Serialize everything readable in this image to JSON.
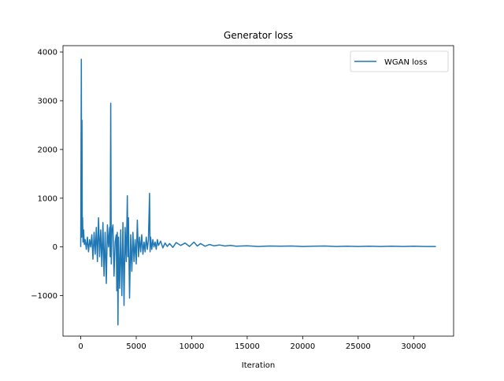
{
  "chart_data": {
    "type": "line",
    "title": "Generator loss",
    "xlabel": "Iteration",
    "ylabel": "",
    "xlim": [
      -1600,
      33600
    ],
    "ylim": [
      -1830,
      4130
    ],
    "x_ticks": [
      0,
      5000,
      10000,
      15000,
      20000,
      25000,
      30000
    ],
    "x_tick_labels": [
      "0",
      "5000",
      "10000",
      "15000",
      "20000",
      "25000",
      "30000"
    ],
    "y_ticks": [
      -1000,
      0,
      1000,
      2000,
      3000,
      4000
    ],
    "y_tick_labels": [
      "−1000",
      "0",
      "1000",
      "2000",
      "3000",
      "4000"
    ],
    "grid": false,
    "legend_position": "top-right",
    "colors": {
      "series": "#1f77b4",
      "axes": "#000000",
      "background": "#ffffff"
    },
    "series": [
      {
        "name": "WGAN loss",
        "x": [
          0,
          50,
          80,
          110,
          140,
          170,
          200,
          260,
          320,
          400,
          500,
          600,
          700,
          800,
          900,
          1000,
          1100,
          1200,
          1300,
          1400,
          1500,
          1600,
          1700,
          1800,
          1900,
          2000,
          2100,
          2200,
          2300,
          2400,
          2500,
          2600,
          2650,
          2700,
          2750,
          2800,
          2900,
          3000,
          3100,
          3200,
          3250,
          3300,
          3350,
          3400,
          3500,
          3600,
          3700,
          3800,
          3900,
          4000,
          4100,
          4200,
          4250,
          4300,
          4400,
          4500,
          4600,
          4700,
          4800,
          4900,
          5000,
          5100,
          5200,
          5300,
          5400,
          5500,
          5600,
          5700,
          5800,
          5900,
          6000,
          6100,
          6200,
          6250,
          6300,
          6400,
          6500,
          6600,
          6700,
          6800,
          6900,
          7000,
          7200,
          7400,
          7600,
          7800,
          8000,
          8300,
          8600,
          9000,
          9400,
          9800,
          10200,
          10500,
          10800,
          11200,
          11600,
          12000,
          12500,
          13000,
          13500,
          14000,
          15000,
          16000,
          17000,
          18000,
          19000,
          20000,
          21000,
          22000,
          23000,
          24000,
          25000,
          26000,
          27000,
          28000,
          29000,
          30000,
          31000,
          32000
        ],
        "values": [
          0,
          3850,
          200,
          2600,
          300,
          600,
          100,
          350,
          50,
          150,
          -50,
          200,
          -100,
          150,
          0,
          250,
          -250,
          300,
          -150,
          400,
          -300,
          600,
          -200,
          350,
          -400,
          500,
          -600,
          300,
          -750,
          450,
          0,
          400,
          -200,
          2950,
          -350,
          300,
          450,
          -600,
          100,
          250,
          -900,
          300,
          -1600,
          200,
          -850,
          350,
          -1000,
          500,
          -1200,
          400,
          -300,
          1050,
          -200,
          600,
          -1050,
          250,
          -500,
          300,
          -300,
          150,
          -350,
          550,
          -200,
          200,
          -100,
          250,
          -150,
          100,
          -100,
          200,
          -50,
          150,
          1100,
          -100,
          200,
          -50,
          150,
          0,
          100,
          -50,
          150,
          30,
          120,
          -20,
          80,
          10,
          70,
          -10,
          90,
          30,
          80,
          10,
          100,
          20,
          70,
          15,
          50,
          25,
          40,
          20,
          30,
          15,
          25,
          10,
          20,
          15,
          20,
          10,
          15,
          20,
          10,
          15,
          10,
          15,
          10,
          15,
          10,
          15,
          10,
          10
        ]
      }
    ]
  }
}
